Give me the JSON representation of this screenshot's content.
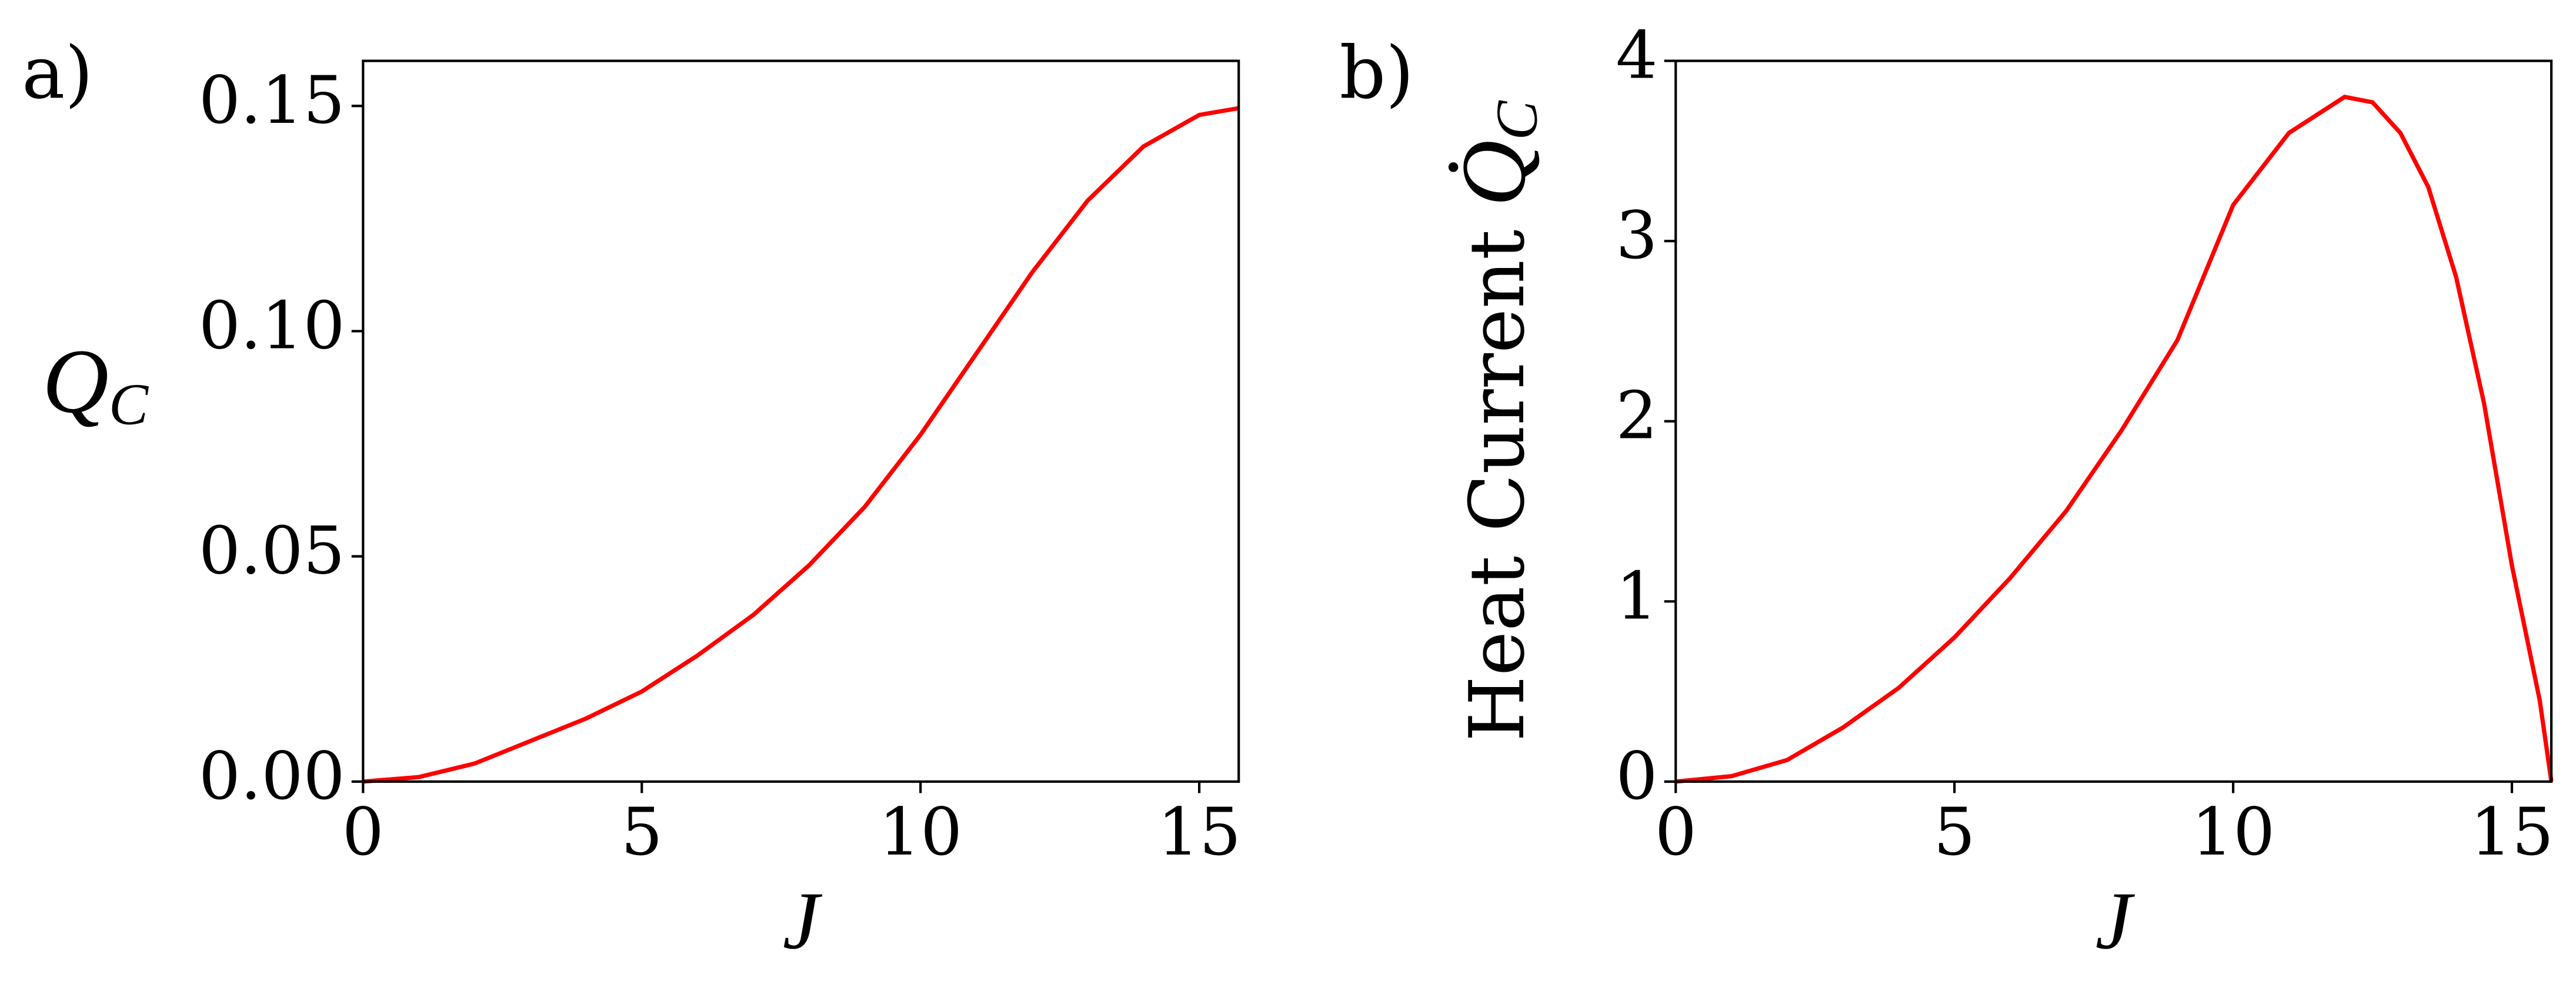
{
  "chart_data": [
    {
      "type": "line",
      "panel_label": "a)",
      "ylabel": "Q",
      "ylabel_sub": "C",
      "xlabel": "J",
      "x": [
        0,
        1,
        2,
        3,
        4,
        5,
        6,
        7,
        8,
        9,
        10,
        11,
        12,
        13,
        14,
        15,
        15.708
      ],
      "series": [
        {
          "color": "#ff0000",
          "values": [
            0,
            0.001,
            0.004,
            0.009,
            0.014,
            0.02,
            0.028,
            0.037,
            0.048,
            0.061,
            0.077,
            0.095,
            0.113,
            0.129,
            0.141,
            0.148,
            0.1495
          ]
        }
      ],
      "xlim": [
        0,
        15.708
      ],
      "xticks": [
        0,
        5,
        10,
        15
      ],
      "ylim": [
        0,
        0.16
      ],
      "yticks": [
        {
          "value": 0,
          "label": "0.00"
        },
        {
          "value": 0.05,
          "label": "0.05"
        },
        {
          "value": 0.1,
          "label": "0.10"
        },
        {
          "value": 0.15,
          "label": "0.15"
        }
      ]
    },
    {
      "type": "line",
      "panel_label": "b)",
      "ylabel": "Heat Current",
      "ylabel_symbol": "Q̇",
      "ylabel_sub": "C",
      "xlabel": "J",
      "x": [
        0,
        1,
        2,
        3,
        4,
        5,
        6,
        7,
        8,
        9,
        10,
        11,
        12,
        12.5,
        13,
        13.5,
        14,
        14.5,
        15,
        15.5,
        15.708
      ],
      "series": [
        {
          "color": "#ff0000",
          "values": [
            0,
            0.03,
            0.12,
            0.3,
            0.52,
            0.8,
            1.13,
            1.5,
            1.95,
            2.45,
            3.2,
            3.6,
            3.8,
            3.77,
            3.6,
            3.3,
            2.8,
            2.1,
            1.2,
            0.45,
            0
          ]
        }
      ],
      "xlim": [
        0,
        15.708
      ],
      "xticks": [
        0,
        5,
        10,
        15
      ],
      "ylim": [
        0,
        4
      ],
      "yticks": [
        0,
        1,
        2,
        3,
        4
      ]
    }
  ]
}
